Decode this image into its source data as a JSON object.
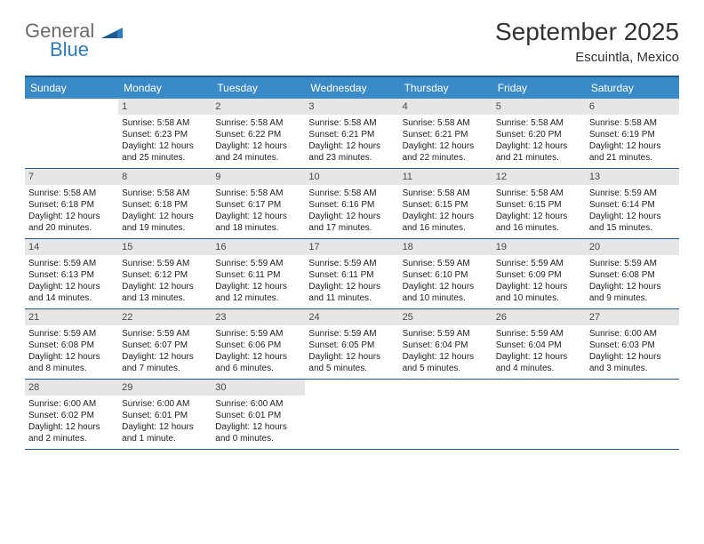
{
  "brand": {
    "top": "General",
    "bottom": "Blue"
  },
  "title": "September 2025",
  "location": "Escuintla, Mexico",
  "colors": {
    "header_bg": "#3a8ac8",
    "border": "#1e5a8c",
    "daynum_bg": "#e6e6e6",
    "text": "#222222",
    "brand_gray": "#6b6b6b",
    "brand_blue": "#2f7bbf"
  },
  "weekdays": [
    "Sunday",
    "Monday",
    "Tuesday",
    "Wednesday",
    "Thursday",
    "Friday",
    "Saturday"
  ],
  "weeks": [
    [
      {
        "n": "",
        "empty": true
      },
      {
        "n": "1",
        "sr": "Sunrise: 5:58 AM",
        "ss": "Sunset: 6:23 PM",
        "dl": "Daylight: 12 hours and 25 minutes."
      },
      {
        "n": "2",
        "sr": "Sunrise: 5:58 AM",
        "ss": "Sunset: 6:22 PM",
        "dl": "Daylight: 12 hours and 24 minutes."
      },
      {
        "n": "3",
        "sr": "Sunrise: 5:58 AM",
        "ss": "Sunset: 6:21 PM",
        "dl": "Daylight: 12 hours and 23 minutes."
      },
      {
        "n": "4",
        "sr": "Sunrise: 5:58 AM",
        "ss": "Sunset: 6:21 PM",
        "dl": "Daylight: 12 hours and 22 minutes."
      },
      {
        "n": "5",
        "sr": "Sunrise: 5:58 AM",
        "ss": "Sunset: 6:20 PM",
        "dl": "Daylight: 12 hours and 21 minutes."
      },
      {
        "n": "6",
        "sr": "Sunrise: 5:58 AM",
        "ss": "Sunset: 6:19 PM",
        "dl": "Daylight: 12 hours and 21 minutes."
      }
    ],
    [
      {
        "n": "7",
        "sr": "Sunrise: 5:58 AM",
        "ss": "Sunset: 6:18 PM",
        "dl": "Daylight: 12 hours and 20 minutes."
      },
      {
        "n": "8",
        "sr": "Sunrise: 5:58 AM",
        "ss": "Sunset: 6:18 PM",
        "dl": "Daylight: 12 hours and 19 minutes."
      },
      {
        "n": "9",
        "sr": "Sunrise: 5:58 AM",
        "ss": "Sunset: 6:17 PM",
        "dl": "Daylight: 12 hours and 18 minutes."
      },
      {
        "n": "10",
        "sr": "Sunrise: 5:58 AM",
        "ss": "Sunset: 6:16 PM",
        "dl": "Daylight: 12 hours and 17 minutes."
      },
      {
        "n": "11",
        "sr": "Sunrise: 5:58 AM",
        "ss": "Sunset: 6:15 PM",
        "dl": "Daylight: 12 hours and 16 minutes."
      },
      {
        "n": "12",
        "sr": "Sunrise: 5:58 AM",
        "ss": "Sunset: 6:15 PM",
        "dl": "Daylight: 12 hours and 16 minutes."
      },
      {
        "n": "13",
        "sr": "Sunrise: 5:59 AM",
        "ss": "Sunset: 6:14 PM",
        "dl": "Daylight: 12 hours and 15 minutes."
      }
    ],
    [
      {
        "n": "14",
        "sr": "Sunrise: 5:59 AM",
        "ss": "Sunset: 6:13 PM",
        "dl": "Daylight: 12 hours and 14 minutes."
      },
      {
        "n": "15",
        "sr": "Sunrise: 5:59 AM",
        "ss": "Sunset: 6:12 PM",
        "dl": "Daylight: 12 hours and 13 minutes."
      },
      {
        "n": "16",
        "sr": "Sunrise: 5:59 AM",
        "ss": "Sunset: 6:11 PM",
        "dl": "Daylight: 12 hours and 12 minutes."
      },
      {
        "n": "17",
        "sr": "Sunrise: 5:59 AM",
        "ss": "Sunset: 6:11 PM",
        "dl": "Daylight: 12 hours and 11 minutes."
      },
      {
        "n": "18",
        "sr": "Sunrise: 5:59 AM",
        "ss": "Sunset: 6:10 PM",
        "dl": "Daylight: 12 hours and 10 minutes."
      },
      {
        "n": "19",
        "sr": "Sunrise: 5:59 AM",
        "ss": "Sunset: 6:09 PM",
        "dl": "Daylight: 12 hours and 10 minutes."
      },
      {
        "n": "20",
        "sr": "Sunrise: 5:59 AM",
        "ss": "Sunset: 6:08 PM",
        "dl": "Daylight: 12 hours and 9 minutes."
      }
    ],
    [
      {
        "n": "21",
        "sr": "Sunrise: 5:59 AM",
        "ss": "Sunset: 6:08 PM",
        "dl": "Daylight: 12 hours and 8 minutes."
      },
      {
        "n": "22",
        "sr": "Sunrise: 5:59 AM",
        "ss": "Sunset: 6:07 PM",
        "dl": "Daylight: 12 hours and 7 minutes."
      },
      {
        "n": "23",
        "sr": "Sunrise: 5:59 AM",
        "ss": "Sunset: 6:06 PM",
        "dl": "Daylight: 12 hours and 6 minutes."
      },
      {
        "n": "24",
        "sr": "Sunrise: 5:59 AM",
        "ss": "Sunset: 6:05 PM",
        "dl": "Daylight: 12 hours and 5 minutes."
      },
      {
        "n": "25",
        "sr": "Sunrise: 5:59 AM",
        "ss": "Sunset: 6:04 PM",
        "dl": "Daylight: 12 hours and 5 minutes."
      },
      {
        "n": "26",
        "sr": "Sunrise: 5:59 AM",
        "ss": "Sunset: 6:04 PM",
        "dl": "Daylight: 12 hours and 4 minutes."
      },
      {
        "n": "27",
        "sr": "Sunrise: 6:00 AM",
        "ss": "Sunset: 6:03 PM",
        "dl": "Daylight: 12 hours and 3 minutes."
      }
    ],
    [
      {
        "n": "28",
        "sr": "Sunrise: 6:00 AM",
        "ss": "Sunset: 6:02 PM",
        "dl": "Daylight: 12 hours and 2 minutes."
      },
      {
        "n": "29",
        "sr": "Sunrise: 6:00 AM",
        "ss": "Sunset: 6:01 PM",
        "dl": "Daylight: 12 hours and 1 minute."
      },
      {
        "n": "30",
        "sr": "Sunrise: 6:00 AM",
        "ss": "Sunset: 6:01 PM",
        "dl": "Daylight: 12 hours and 0 minutes."
      },
      {
        "n": "",
        "empty": true
      },
      {
        "n": "",
        "empty": true
      },
      {
        "n": "",
        "empty": true
      },
      {
        "n": "",
        "empty": true
      }
    ]
  ]
}
